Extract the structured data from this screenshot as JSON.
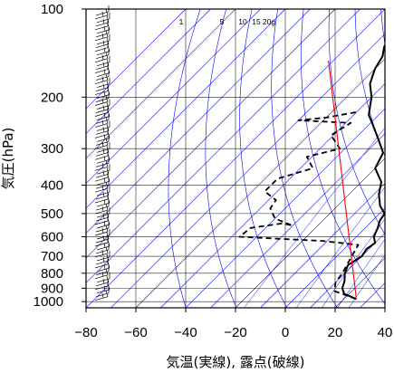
{
  "chart_data": {
    "type": "line",
    "xlabel": "気温(実線), 露点(破線)",
    "ylabel": "気圧(hPa)",
    "xlim": [
      -80,
      40
    ],
    "ylim": [
      1050,
      100
    ],
    "y_scale": "log",
    "x_ticks": [
      "−80",
      "−60",
      "−40",
      "−20",
      "0",
      "20",
      "40"
    ],
    "x_tick_values": [
      -80,
      -60,
      -40,
      -20,
      0,
      20,
      40
    ],
    "y_ticks": [
      "100",
      "200",
      "300",
      "400",
      "500",
      "600",
      "700",
      "800",
      "900",
      "1000"
    ],
    "y_tick_values": [
      100,
      200,
      300,
      400,
      500,
      600,
      700,
      800,
      900,
      1000
    ],
    "mixing_ratio_labels": [
      "1",
      "5",
      "10",
      "15",
      "20g"
    ],
    "mixing_ratio_values": [
      1,
      5,
      10,
      15,
      20
    ],
    "colors": {
      "temperature": "#000000",
      "dewpoint": "#000000",
      "reference": "#ff0000",
      "grid": "#0000ff",
      "frame": "#000000"
    },
    "series": [
      {
        "style": "solid",
        "points": [
          [
            25,
            980
          ],
          [
            18,
            940
          ],
          [
            15,
            900
          ],
          [
            13,
            850
          ],
          [
            10,
            800
          ],
          [
            8,
            750
          ],
          [
            10,
            700
          ],
          [
            9,
            660
          ],
          [
            10,
            630
          ],
          [
            7,
            600
          ],
          [
            5,
            560
          ],
          [
            3,
            530
          ],
          [
            2,
            500
          ],
          [
            -3,
            470
          ],
          [
            -8,
            430
          ],
          [
            -12,
            390
          ],
          [
            -20,
            350
          ],
          [
            -23,
            310
          ],
          [
            -30,
            280
          ],
          [
            -38,
            250
          ],
          [
            -44,
            230
          ],
          [
            -50,
            200
          ],
          [
            -56,
            180
          ],
          [
            -60,
            160
          ],
          [
            -62,
            145
          ],
          [
            -65,
            135
          ],
          [
            -67,
            125
          ],
          [
            -70,
            118
          ],
          [
            -72,
            112
          ],
          [
            -74,
            108
          ],
          [
            -75,
            104
          ],
          [
            -76,
            101
          ]
        ]
      },
      {
        "style": "dashed",
        "points": [
          [
            25,
            980
          ],
          [
            13,
            920
          ],
          [
            10,
            860
          ],
          [
            9,
            800
          ],
          [
            6,
            700
          ],
          [
            4,
            640
          ],
          [
            -12,
            620
          ],
          [
            -30,
            610
          ],
          [
            -47,
            600
          ],
          [
            -46,
            560
          ],
          [
            -35,
            540
          ],
          [
            -30,
            550
          ],
          [
            -40,
            520
          ],
          [
            -46,
            480
          ],
          [
            -47,
            450
          ],
          [
            -55,
            420
          ],
          [
            -55,
            380
          ],
          [
            -45,
            350
          ],
          [
            -52,
            320
          ],
          [
            -42,
            300
          ],
          [
            -51,
            270
          ],
          [
            -48,
            245
          ],
          [
            -70,
            240
          ],
          [
            -60,
            235
          ],
          [
            -50,
            225
          ]
        ]
      },
      {
        "style": "reference",
        "points": [
          [
            25,
            980
          ],
          [
            -82,
            150
          ]
        ]
      }
    ]
  }
}
